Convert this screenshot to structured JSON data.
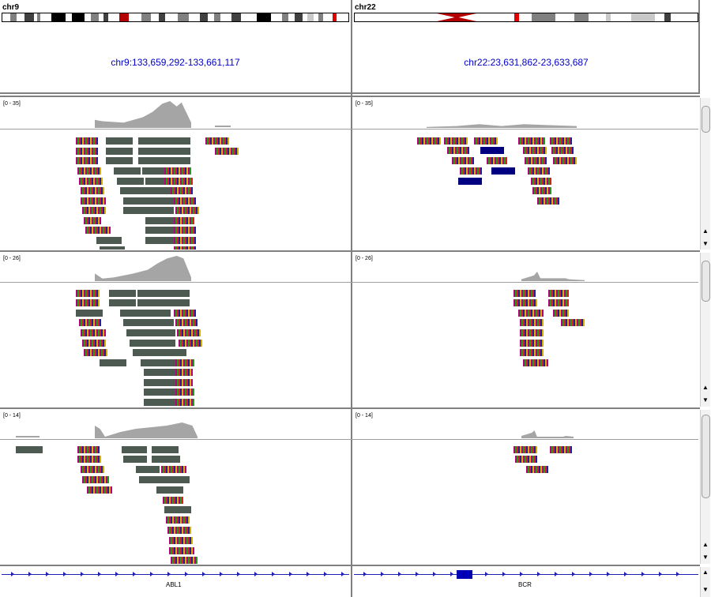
{
  "left_chromosome": {
    "name": "chr9",
    "locus": "chr9:133,659,292-133,661,117"
  },
  "right_chromosome": {
    "name": "chr22",
    "locus": "chr22:23,631,862-23,633,687"
  },
  "tracks": [
    {
      "left_range": "[0 - 35]",
      "right_range": "[0 - 35]"
    },
    {
      "left_range": "[0 - 26]",
      "right_range": "[0 - 26]"
    },
    {
      "left_range": "[0 - 14]",
      "right_range": "[0 - 14]"
    }
  ],
  "genes": {
    "left": "ABL1",
    "right": "BCR"
  },
  "scroll": {
    "up_arrow": "▲",
    "down_arrow": "▼"
  },
  "colors": {
    "locus_text": "#0000c8",
    "coverage": "#a5a5a5",
    "read_gray": "#c8c8c8",
    "read_dark": "#4d5a52",
    "gene": "#1f1fb4",
    "centromere": "#b40000",
    "current_region": "#e00000"
  }
}
